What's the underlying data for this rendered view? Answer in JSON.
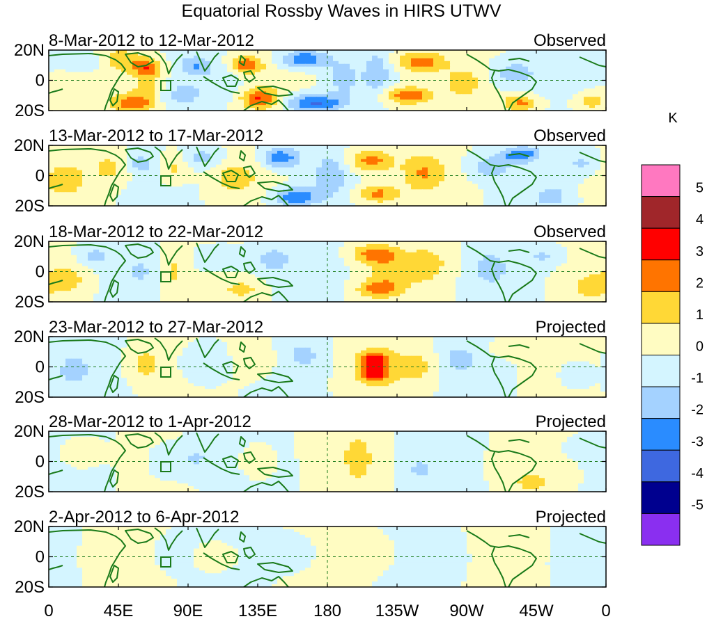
{
  "chart_data": {
    "type": "heatmap",
    "title": "Equatorial Rossby Waves in HIRS UTWV",
    "variable": "HIRS UTWV anomaly",
    "unit": "K",
    "x_tick_labels": [
      "0",
      "45E",
      "90E",
      "135E",
      "180",
      "135W",
      "90W",
      "45W",
      "0"
    ],
    "y_tick_labels": [
      "20N",
      "0",
      "20S"
    ],
    "xlim": [
      0,
      360
    ],
    "ylim": [
      -20,
      20
    ],
    "colorbar": {
      "labels": [
        "5",
        "4",
        "3",
        "2",
        "1",
        "0",
        "-1",
        "-2",
        "-3",
        "-4",
        "-5"
      ],
      "levels": [
        5,
        4,
        3,
        2,
        1,
        0,
        -1,
        -2,
        -3,
        -4,
        -5
      ],
      "colors": [
        "#ff78c0",
        "#a0262a",
        "#ff0000",
        "#ff7400",
        "#ffd836",
        "#fffcc2",
        "#d4f5ff",
        "#a4d2ff",
        "#2a8cff",
        "#3e68e0",
        "#00008f",
        "#8a2ff0"
      ]
    },
    "panels": [
      {
        "period": "8-Mar-2012 to 12-Mar-2012",
        "status": "Observed",
        "blobs": [
          {
            "lon": 48,
            "lat": 14,
            "v": 1.5,
            "wx": 14,
            "wy": 8
          },
          {
            "lon": 64,
            "lat": 8,
            "v": 2.8,
            "wx": 10,
            "wy": 6
          },
          {
            "lon": 55,
            "lat": -15,
            "v": 2.8,
            "wx": 14,
            "wy": 6
          },
          {
            "lon": 65,
            "lat": -5,
            "v": 1.3,
            "wx": 12,
            "wy": 8
          },
          {
            "lon": 25,
            "lat": 12,
            "v": -0.8,
            "wx": 14,
            "wy": 8
          },
          {
            "lon": 95,
            "lat": 10,
            "v": -1.8,
            "wx": 10,
            "wy": 6
          },
          {
            "lon": 85,
            "lat": -10,
            "v": -1.2,
            "wx": 14,
            "wy": 8
          },
          {
            "lon": 128,
            "lat": 10,
            "v": 2.8,
            "wx": 10,
            "wy": 6
          },
          {
            "lon": 136,
            "lat": -12,
            "v": 2.9,
            "wx": 12,
            "wy": 7
          },
          {
            "lon": 112,
            "lat": -2,
            "v": -0.8,
            "wx": 14,
            "wy": 10
          },
          {
            "lon": 165,
            "lat": 14,
            "v": -3.0,
            "wx": 15,
            "wy": 6
          },
          {
            "lon": 172,
            "lat": -15,
            "v": -3.2,
            "wx": 18,
            "wy": 6
          },
          {
            "lon": 190,
            "lat": 2,
            "v": -1.3,
            "wx": 10,
            "wy": 12
          },
          {
            "lon": 212,
            "lat": 5,
            "v": -1.6,
            "wx": 8,
            "wy": 14
          },
          {
            "lon": 240,
            "lat": 12,
            "v": 2.5,
            "wx": 16,
            "wy": 7
          },
          {
            "lon": 232,
            "lat": -10,
            "v": 2.8,
            "wx": 16,
            "wy": 6
          },
          {
            "lon": 268,
            "lat": -2,
            "v": 1.2,
            "wx": 12,
            "wy": 10
          },
          {
            "lon": 300,
            "lat": 5,
            "v": -1.6,
            "wx": 14,
            "wy": 8
          },
          {
            "lon": 305,
            "lat": -15,
            "v": 2.3,
            "wx": 12,
            "wy": 5
          },
          {
            "lon": 350,
            "lat": -14,
            "v": 1.6,
            "wx": 10,
            "wy": 6
          }
        ]
      },
      {
        "period": "13-Mar-2012 to 17-Mar-2012",
        "status": "Observed",
        "blobs": [
          {
            "lon": 10,
            "lat": -3,
            "v": 1.5,
            "wx": 14,
            "wy": 10
          },
          {
            "lon": 40,
            "lat": 5,
            "v": 1.3,
            "wx": 12,
            "wy": 10
          },
          {
            "lon": 80,
            "lat": 5,
            "v": 1.4,
            "wx": 10,
            "wy": 10
          },
          {
            "lon": 60,
            "lat": 8,
            "v": -1.3,
            "wx": 10,
            "wy": 6
          },
          {
            "lon": 100,
            "lat": 12,
            "v": -1.4,
            "wx": 12,
            "wy": 6
          },
          {
            "lon": 120,
            "lat": -2,
            "v": 1.3,
            "wx": 14,
            "wy": 10
          },
          {
            "lon": 150,
            "lat": 12,
            "v": -2.8,
            "wx": 12,
            "wy": 7
          },
          {
            "lon": 160,
            "lat": -14,
            "v": -3.0,
            "wx": 14,
            "wy": 6
          },
          {
            "lon": 182,
            "lat": 0,
            "v": -1.6,
            "wx": 10,
            "wy": 14
          },
          {
            "lon": 208,
            "lat": 10,
            "v": 2.6,
            "wx": 14,
            "wy": 8
          },
          {
            "lon": 212,
            "lat": -12,
            "v": 2.4,
            "wx": 14,
            "wy": 6
          },
          {
            "lon": 242,
            "lat": 2,
            "v": 1.8,
            "wx": 14,
            "wy": 12
          },
          {
            "lon": 285,
            "lat": 6,
            "v": -1.5,
            "wx": 14,
            "wy": 8
          },
          {
            "lon": 305,
            "lat": 14,
            "v": -2.6,
            "wx": 12,
            "wy": 5
          },
          {
            "lon": 325,
            "lat": -14,
            "v": -1.7,
            "wx": 10,
            "wy": 6
          },
          {
            "lon": 345,
            "lat": 8,
            "v": -1.2,
            "wx": 12,
            "wy": 8
          }
        ]
      },
      {
        "period": "18-Mar-2012 to 22-Mar-2012",
        "status": "Observed",
        "blobs": [
          {
            "lon": 12,
            "lat": -5,
            "v": 1.4,
            "wx": 14,
            "wy": 10
          },
          {
            "lon": 30,
            "lat": 10,
            "v": -1.2,
            "wx": 10,
            "wy": 7
          },
          {
            "lon": 60,
            "lat": 0,
            "v": -0.8,
            "wx": 12,
            "wy": 12
          },
          {
            "lon": 80,
            "lat": 0,
            "v": 1.3,
            "wx": 8,
            "wy": 14
          },
          {
            "lon": 112,
            "lat": 8,
            "v": -1.2,
            "wx": 16,
            "wy": 8
          },
          {
            "lon": 145,
            "lat": 8,
            "v": -1.4,
            "wx": 12,
            "wy": 10
          },
          {
            "lon": 125,
            "lat": -12,
            "v": 1.2,
            "wx": 12,
            "wy": 6
          },
          {
            "lon": 210,
            "lat": 12,
            "v": 2.3,
            "wx": 14,
            "wy": 6
          },
          {
            "lon": 212,
            "lat": -12,
            "v": 2.1,
            "wx": 14,
            "wy": 6
          },
          {
            "lon": 220,
            "lat": 0,
            "v": 1.4,
            "wx": 16,
            "wy": 12
          },
          {
            "lon": 245,
            "lat": 5,
            "v": 1.3,
            "wx": 14,
            "wy": 12
          },
          {
            "lon": 285,
            "lat": 2,
            "v": -1.2,
            "wx": 12,
            "wy": 12
          },
          {
            "lon": 320,
            "lat": 10,
            "v": -1.1,
            "wx": 12,
            "wy": 6
          },
          {
            "lon": 350,
            "lat": -10,
            "v": 1.3,
            "wx": 12,
            "wy": 8
          }
        ]
      },
      {
        "period": "23-Mar-2012 to 27-Mar-2012",
        "status": "Projected",
        "blobs": [
          {
            "lon": 15,
            "lat": -2,
            "v": -1.2,
            "wx": 12,
            "wy": 12
          },
          {
            "lon": 62,
            "lat": 2,
            "v": 1.4,
            "wx": 12,
            "wy": 12
          },
          {
            "lon": 100,
            "lat": 2,
            "v": -1.3,
            "wx": 14,
            "wy": 12
          },
          {
            "lon": 135,
            "lat": 5,
            "v": 0.8,
            "wx": 14,
            "wy": 12
          },
          {
            "lon": 165,
            "lat": 8,
            "v": -1.1,
            "wx": 12,
            "wy": 10
          },
          {
            "lon": 210,
            "lat": 5,
            "v": 2.2,
            "wx": 9,
            "wy": 5
          },
          {
            "lon": 210,
            "lat": -5,
            "v": 2.2,
            "wx": 9,
            "wy": 5
          },
          {
            "lon": 212,
            "lat": 0,
            "v": 1.4,
            "wx": 16,
            "wy": 14
          },
          {
            "lon": 240,
            "lat": 0,
            "v": 1.2,
            "wx": 12,
            "wy": 12
          },
          {
            "lon": 265,
            "lat": 5,
            "v": -1.2,
            "wx": 12,
            "wy": 10
          },
          {
            "lon": 300,
            "lat": 12,
            "v": 0.8,
            "wx": 14,
            "wy": 6
          },
          {
            "lon": 340,
            "lat": -5,
            "v": -1.1,
            "wx": 10,
            "wy": 8
          }
        ]
      },
      {
        "period": "28-Mar-2012 to 1-Apr-2012",
        "status": "Projected",
        "blobs": [
          {
            "lon": 20,
            "lat": 5,
            "v": 0.8,
            "wx": 14,
            "wy": 10
          },
          {
            "lon": 75,
            "lat": 0,
            "v": -0.8,
            "wx": 12,
            "wy": 12
          },
          {
            "lon": 95,
            "lat": 2,
            "v": -1.2,
            "wx": 12,
            "wy": 12
          },
          {
            "lon": 135,
            "lat": 0,
            "v": 0.8,
            "wx": 12,
            "wy": 12
          },
          {
            "lon": 200,
            "lat": 2,
            "v": 1.4,
            "wx": 9,
            "wy": 15
          },
          {
            "lon": 175,
            "lat": 10,
            "v": 0.6,
            "wx": 12,
            "wy": 8
          },
          {
            "lon": 240,
            "lat": -5,
            "v": -1.2,
            "wx": 8,
            "wy": 6
          },
          {
            "lon": 310,
            "lat": -2,
            "v": 0.6,
            "wx": 16,
            "wy": 12
          },
          {
            "lon": 312,
            "lat": -15,
            "v": 1.2,
            "wx": 10,
            "wy": 5
          },
          {
            "lon": 345,
            "lat": 8,
            "v": -0.8,
            "wx": 12,
            "wy": 6
          }
        ]
      },
      {
        "period": "2-Apr-2012 to 6-Apr-2012",
        "status": "Projected",
        "blobs": [
          {
            "lon": 40,
            "lat": 0,
            "v": 0.6,
            "wx": 16,
            "wy": 12
          },
          {
            "lon": 78,
            "lat": 2,
            "v": -0.8,
            "wx": 10,
            "wy": 10
          },
          {
            "lon": 110,
            "lat": 0,
            "v": 0.6,
            "wx": 16,
            "wy": 12
          },
          {
            "lon": 160,
            "lat": 2,
            "v": -0.7,
            "wx": 14,
            "wy": 12
          },
          {
            "lon": 210,
            "lat": 2,
            "v": 0.6,
            "wx": 16,
            "wy": 12
          },
          {
            "lon": 255,
            "lat": 0,
            "v": -0.6,
            "wx": 14,
            "wy": 12
          },
          {
            "lon": 300,
            "lat": 5,
            "v": 0.5,
            "wx": 14,
            "wy": 10
          },
          {
            "lon": 340,
            "lat": 0,
            "v": -0.6,
            "wx": 12,
            "wy": 12
          }
        ]
      }
    ]
  }
}
